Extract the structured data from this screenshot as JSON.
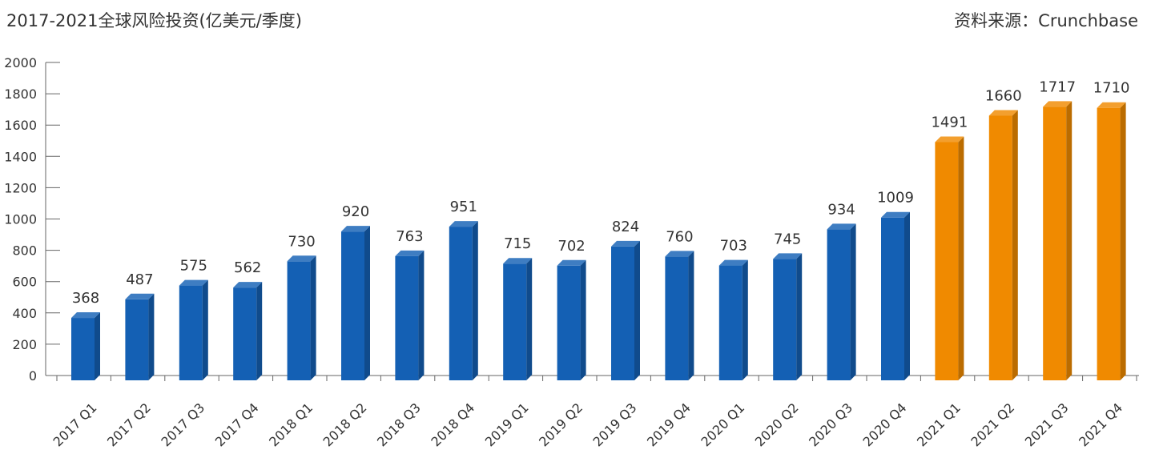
{
  "header": {
    "title": "2017-2021全球风险投资(亿美元/季度)",
    "source": "资料来源：Crunchbase"
  },
  "chart_data": {
    "type": "bar",
    "title": "2017-2021全球风险投资(亿美元/季度)",
    "xlabel": "",
    "ylabel": "",
    "ylim": [
      0,
      2000
    ],
    "yticks": [
      0,
      200,
      400,
      600,
      800,
      1000,
      1200,
      1400,
      1600,
      1800,
      2000
    ],
    "categories": [
      "2017 Q1",
      "2017 Q2",
      "2017 Q3",
      "2017 Q4",
      "2018 Q1",
      "2018 Q2",
      "2018 Q3",
      "2018 Q4",
      "2019 Q1",
      "2019 Q2",
      "2019 Q3",
      "2019 Q4",
      "2020 Q1",
      "2020 Q2",
      "2020 Q3",
      "2020 Q4",
      "2021 Q1",
      "2021 Q2",
      "2021 Q3",
      "2021 Q4"
    ],
    "values": [
      368,
      487,
      575,
      562,
      730,
      920,
      763,
      951,
      715,
      702,
      824,
      760,
      703,
      745,
      934,
      1009,
      1491,
      1660,
      1717,
      1710
    ],
    "grid": false,
    "legend": "none",
    "colors": {
      "default": "#1460b4",
      "highlight": "#f08a00"
    },
    "highlight_categories": [
      "2021 Q1",
      "2021 Q2",
      "2021 Q3",
      "2021 Q4"
    ]
  }
}
